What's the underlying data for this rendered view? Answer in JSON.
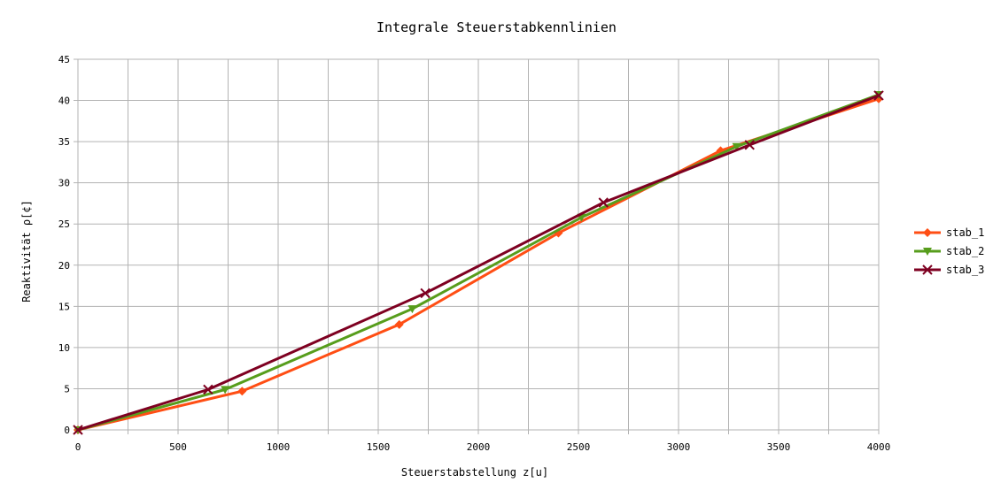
{
  "chart_data": {
    "type": "line",
    "title": "Integrale Steuerstabkennlinien",
    "xlabel": "Steuerstabstellung z[u]",
    "ylabel": "Reaktivität ρ[¢]",
    "xlim": [
      0,
      4000
    ],
    "ylim": [
      0,
      45
    ],
    "x_ticks": [
      0,
      500,
      1000,
      1500,
      2000,
      2500,
      3000,
      3500,
      4000
    ],
    "y_ticks": [
      0,
      5,
      10,
      15,
      20,
      25,
      30,
      35,
      40,
      45
    ],
    "x_minor_grid_step": 250,
    "grid": true,
    "legend_position": "right",
    "series": [
      {
        "name": "stab_1",
        "color": "#ff4e14",
        "marker": "diamond",
        "x": [
          0,
          820,
          1605,
          2400,
          3210,
          4000
        ],
        "y": [
          0,
          4.7,
          12.8,
          23.9,
          33.9,
          40.2
        ]
      },
      {
        "name": "stab_2",
        "color": "#579d1c",
        "marker": "triangle-down",
        "x": [
          0,
          735,
          1670,
          2515,
          3290,
          4000
        ],
        "y": [
          0,
          4.9,
          14.7,
          25.8,
          34.4,
          40.7
        ]
      },
      {
        "name": "stab_3",
        "color": "#7e0021",
        "marker": "x",
        "x": [
          0,
          650,
          1735,
          2625,
          3355,
          4000
        ],
        "y": [
          0,
          4.9,
          16.6,
          27.6,
          34.6,
          40.6
        ]
      }
    ]
  }
}
